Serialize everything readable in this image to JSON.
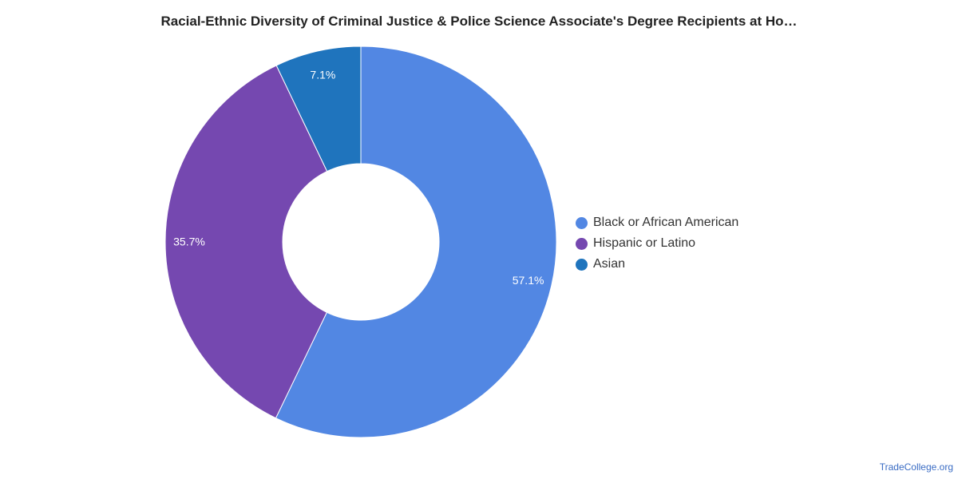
{
  "chart_data": {
    "type": "pie",
    "title": "Racial-Ethnic Diversity of Criminal Justice & Police Science Associate's Degree Recipients at Ho…",
    "donut": true,
    "legend_position": "right",
    "slices": [
      {
        "label": "Black or African American",
        "value": 57.1,
        "value_label": "57.1%",
        "color": "#5287e3"
      },
      {
        "label": "Hispanic or Latino",
        "value": 35.7,
        "value_label": "35.7%",
        "color": "#7548b0"
      },
      {
        "label": "Asian",
        "value": 7.1,
        "value_label": "7.1%",
        "color": "#1f74bd"
      }
    ]
  },
  "credit": "TradeCollege.org"
}
